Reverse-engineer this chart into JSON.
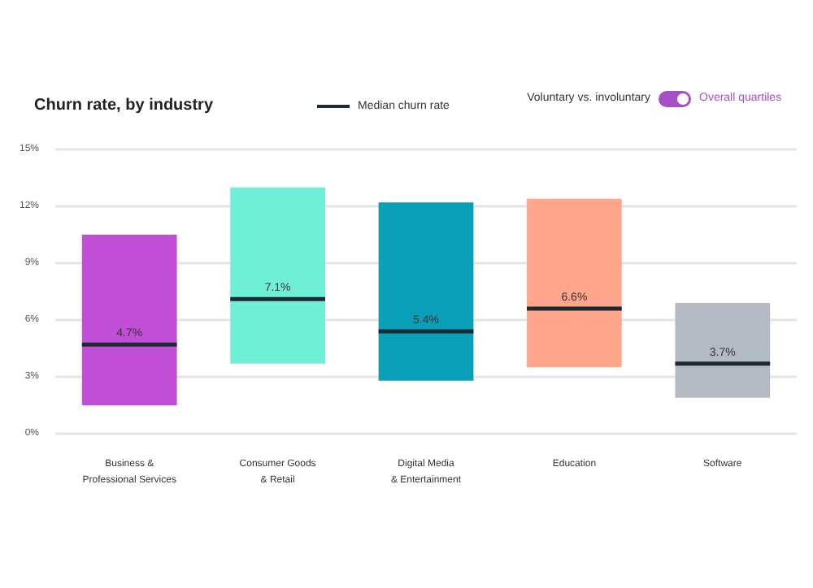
{
  "chart_data": {
    "type": "box",
    "title": "Churn rate, by industry",
    "categories": [
      "Business &\nProfessional Services",
      "Consumer Goods\n& Retail",
      "Digital Media\n& Entertainment",
      "Education",
      "Software"
    ],
    "series": [
      {
        "name": "Median churn rate",
        "color": "#1c2b33",
        "colors": [
          "#c04fd6",
          "#6ff0d6",
          "#0a9fb8",
          "#ffa68c",
          "#b4bac4"
        ],
        "value_labels": [
          "4.7%",
          "7.1%",
          "5.4%",
          "6.6%",
          "3.7%"
        ],
        "boxes": [
          {
            "low": 1.5,
            "q1": 1.5,
            "median": 4.7,
            "q3": 10.5,
            "high": 10.5
          },
          {
            "low": 3.7,
            "q1": 3.7,
            "median": 7.1,
            "q3": 13.0,
            "high": 13.0
          },
          {
            "low": 2.8,
            "q1": 2.8,
            "median": 5.4,
            "q3": 12.2,
            "high": 12.2
          },
          {
            "low": 3.5,
            "q1": 3.5,
            "median": 6.6,
            "q3": 12.4,
            "high": 12.4
          },
          {
            "low": 1.9,
            "q1": 1.9,
            "median": 3.7,
            "q3": 6.9,
            "high": 6.9
          }
        ]
      }
    ],
    "ylim": [
      0,
      15
    ],
    "yticks": [
      {
        "value": 0,
        "label": "0%"
      },
      {
        "value": 3,
        "label": "3%"
      },
      {
        "value": 6,
        "label": "6%"
      },
      {
        "value": 9,
        "label": "9%"
      },
      {
        "value": 12,
        "label": "12%"
      },
      {
        "value": 15,
        "label": "15%"
      }
    ],
    "grid": "y",
    "legend": "top",
    "annotations": [
      "Voluntary vs. involuntary",
      "Overall quartiles"
    ]
  }
}
